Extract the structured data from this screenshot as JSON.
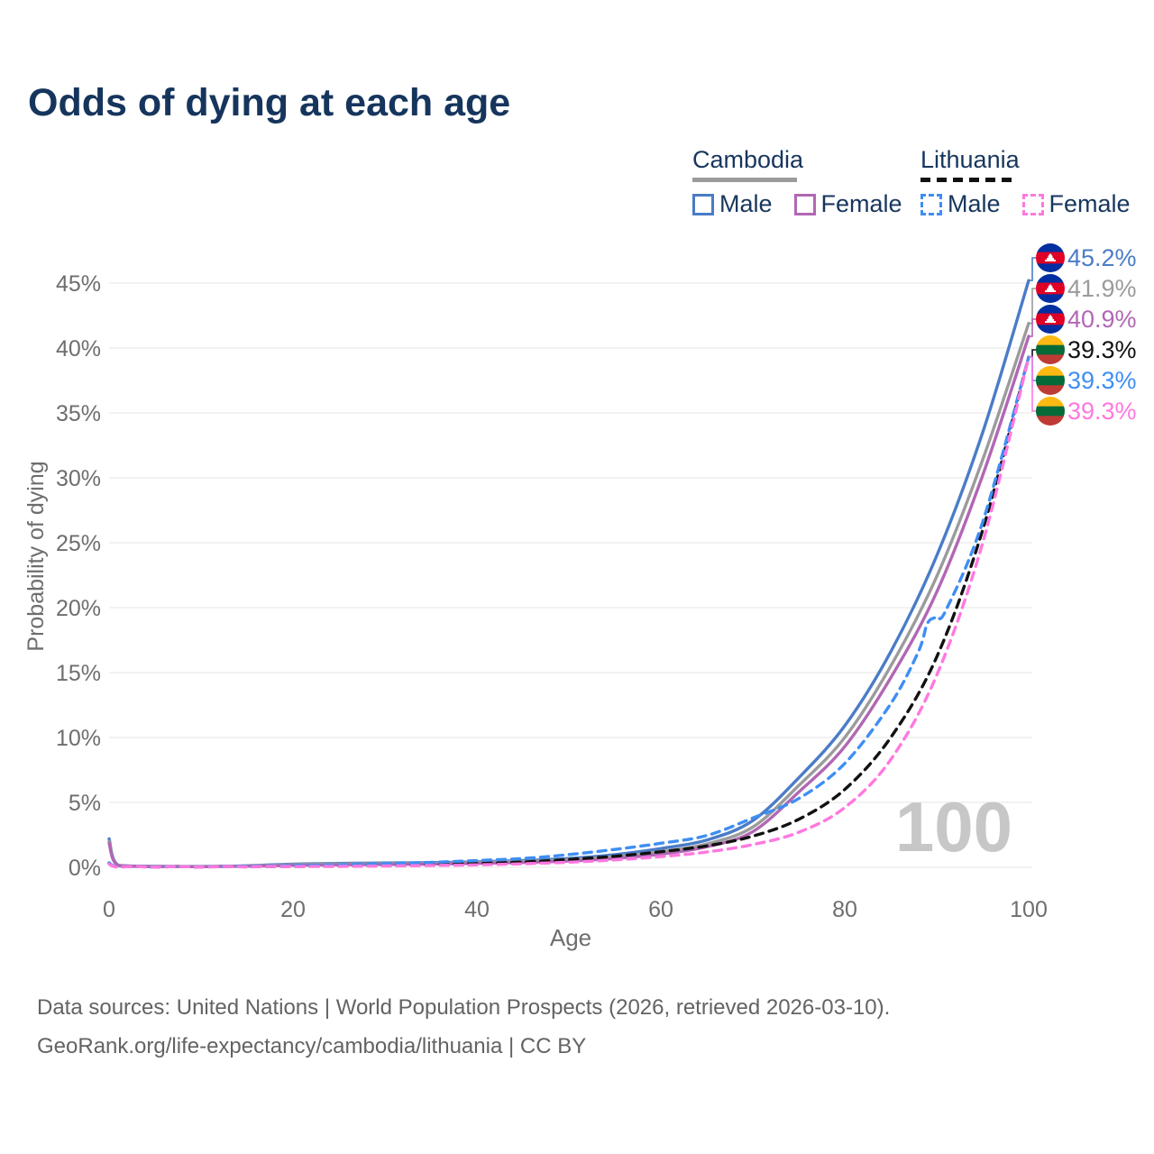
{
  "title": "Odds of dying at each age",
  "legend": {
    "groups": [
      {
        "label": "Cambodia",
        "line_style": "solid",
        "line_color": "#9b9b9b",
        "items": [
          {
            "label": "Male",
            "swatch_color": "#4a7cc7",
            "swatch_style": "solid"
          },
          {
            "label": "Female",
            "swatch_color": "#b167b4",
            "swatch_style": "solid"
          }
        ]
      },
      {
        "label": "Lithuania",
        "line_style": "dashed",
        "line_color": "#111111",
        "items": [
          {
            "label": "Male",
            "swatch_color": "#3f8ef3",
            "swatch_style": "dashed"
          },
          {
            "label": "Female",
            "swatch_color": "#ff78e0",
            "swatch_style": "dashed"
          }
        ]
      }
    ]
  },
  "watermark": "100",
  "footer": {
    "line1": "Data sources: United Nations | World Population Prospects (2026, retrieved 2026-03-10).",
    "line2": "GeoRank.org/life-expectancy/cambodia/lithuania | CC BY"
  },
  "flags": {
    "cambodia": {
      "bands": [
        "#032ea1",
        "#e00025",
        "#032ea1"
      ],
      "band_heights": [
        0.3,
        0.4,
        0.3
      ],
      "emblem_color": "#ffffff"
    },
    "lithuania": {
      "bands": [
        "#fdb913",
        "#046a38",
        "#be3a34"
      ],
      "band_heights": [
        0.334,
        0.333,
        0.333
      ]
    }
  },
  "chart_data": {
    "type": "line",
    "title": "Odds of dying at each age",
    "xlabel": "Age",
    "ylabel": "Probability of dying",
    "xlim": [
      0,
      100
    ],
    "ylim_pct": [
      0,
      45
    ],
    "x_ticks": [
      0,
      20,
      40,
      60,
      80,
      100
    ],
    "y_ticks_pct": [
      0,
      5,
      10,
      15,
      20,
      25,
      30,
      35,
      40,
      45
    ],
    "grid": "horizontal",
    "axis_text_color": "#6e6e6e",
    "grid_color": "#ebebeb",
    "watermark_color": "#c7c7c7",
    "series": [
      {
        "id": "cambodia-male",
        "country": "cambodia",
        "sex": "male",
        "name": "Cambodia Male",
        "color": "#4a7cc7",
        "dash": false,
        "flag": "cambodia",
        "end_label": "45.2%",
        "end_value_pct": 45.2,
        "points_pct": [
          [
            0,
            2.2
          ],
          [
            1,
            0.16
          ],
          [
            5,
            0.07
          ],
          [
            10,
            0.06
          ],
          [
            15,
            0.12
          ],
          [
            20,
            0.25
          ],
          [
            25,
            0.3
          ],
          [
            30,
            0.33
          ],
          [
            35,
            0.36
          ],
          [
            40,
            0.42
          ],
          [
            45,
            0.52
          ],
          [
            50,
            0.68
          ],
          [
            55,
            0.98
          ],
          [
            60,
            1.45
          ],
          [
            65,
            2.1
          ],
          [
            70,
            3.6
          ],
          [
            75,
            6.9
          ],
          [
            80,
            10.9
          ],
          [
            85,
            16.6
          ],
          [
            90,
            24.0
          ],
          [
            95,
            33.5
          ],
          [
            100,
            45.2
          ]
        ]
      },
      {
        "id": "cambodia-all",
        "country": "cambodia",
        "sex": "both",
        "name": "Cambodia Both sexes",
        "color": "#9b9b9b",
        "dash": false,
        "flag": "cambodia",
        "end_label": "41.9%",
        "end_value_pct": 41.9,
        "points_pct": [
          [
            0,
            2.0
          ],
          [
            1,
            0.14
          ],
          [
            5,
            0.06
          ],
          [
            10,
            0.05
          ],
          [
            15,
            0.1
          ],
          [
            20,
            0.2
          ],
          [
            25,
            0.25
          ],
          [
            30,
            0.28
          ],
          [
            35,
            0.31
          ],
          [
            40,
            0.36
          ],
          [
            45,
            0.44
          ],
          [
            50,
            0.58
          ],
          [
            55,
            0.82
          ],
          [
            60,
            1.2
          ],
          [
            65,
            1.8
          ],
          [
            70,
            3.1
          ],
          [
            75,
            6.3
          ],
          [
            80,
            10.0
          ],
          [
            85,
            15.5
          ],
          [
            90,
            22.4
          ],
          [
            95,
            31.4
          ],
          [
            100,
            41.9
          ]
        ]
      },
      {
        "id": "cambodia-female",
        "country": "cambodia",
        "sex": "female",
        "name": "Cambodia Female",
        "color": "#b167b4",
        "dash": false,
        "flag": "cambodia",
        "end_label": "40.9%",
        "end_value_pct": 40.9,
        "points_pct": [
          [
            0,
            1.85
          ],
          [
            1,
            0.13
          ],
          [
            5,
            0.05
          ],
          [
            10,
            0.04
          ],
          [
            15,
            0.08
          ],
          [
            20,
            0.15
          ],
          [
            25,
            0.19
          ],
          [
            30,
            0.22
          ],
          [
            35,
            0.25
          ],
          [
            40,
            0.3
          ],
          [
            45,
            0.37
          ],
          [
            50,
            0.48
          ],
          [
            55,
            0.68
          ],
          [
            60,
            1.02
          ],
          [
            65,
            1.58
          ],
          [
            70,
            2.75
          ],
          [
            75,
            5.8
          ],
          [
            80,
            9.3
          ],
          [
            85,
            14.6
          ],
          [
            90,
            21.2
          ],
          [
            95,
            30.2
          ],
          [
            100,
            40.9
          ]
        ]
      },
      {
        "id": "lithuania-all",
        "country": "lithuania",
        "sex": "both",
        "name": "Lithuania Both sexes",
        "color": "#111111",
        "dash": true,
        "flag": "lithuania",
        "end_label": "39.3%",
        "end_value_pct": 39.3,
        "points_pct": [
          [
            0,
            0.3
          ],
          [
            1,
            0.02
          ],
          [
            5,
            0.01
          ],
          [
            10,
            0.01
          ],
          [
            15,
            0.04
          ],
          [
            20,
            0.07
          ],
          [
            25,
            0.1
          ],
          [
            30,
            0.15
          ],
          [
            35,
            0.21
          ],
          [
            40,
            0.29
          ],
          [
            45,
            0.41
          ],
          [
            50,
            0.6
          ],
          [
            55,
            0.85
          ],
          [
            60,
            1.2
          ],
          [
            65,
            1.65
          ],
          [
            70,
            2.4
          ],
          [
            75,
            3.7
          ],
          [
            80,
            6.0
          ],
          [
            85,
            10.0
          ],
          [
            90,
            16.2
          ],
          [
            95,
            26.0
          ],
          [
            100,
            39.3
          ]
        ]
      },
      {
        "id": "lithuania-male",
        "country": "lithuania",
        "sex": "male",
        "name": "Lithuania Male",
        "color": "#3f8ef3",
        "dash": true,
        "flag": "lithuania",
        "end_label": "39.3%",
        "end_value_pct": 39.3,
        "points_pct": [
          [
            0,
            0.35
          ],
          [
            1,
            0.03
          ],
          [
            5,
            0.02
          ],
          [
            10,
            0.02
          ],
          [
            15,
            0.07
          ],
          [
            20,
            0.13
          ],
          [
            25,
            0.19
          ],
          [
            30,
            0.27
          ],
          [
            35,
            0.38
          ],
          [
            40,
            0.52
          ],
          [
            45,
            0.68
          ],
          [
            50,
            0.98
          ],
          [
            55,
            1.38
          ],
          [
            60,
            1.85
          ],
          [
            65,
            2.45
          ],
          [
            70,
            3.8
          ],
          [
            75,
            5.3
          ],
          [
            80,
            8.0
          ],
          [
            85,
            12.6
          ],
          [
            88,
            16.6
          ],
          [
            89,
            18.8
          ],
          [
            90,
            19.3
          ],
          [
            91,
            19.8
          ],
          [
            95,
            26.6
          ],
          [
            100,
            39.3
          ]
        ]
      },
      {
        "id": "lithuania-female",
        "country": "lithuania",
        "sex": "female",
        "name": "Lithuania Female",
        "color": "#ff78e0",
        "dash": true,
        "flag": "lithuania",
        "end_label": "39.3%",
        "end_value_pct": 39.3,
        "points_pct": [
          [
            0,
            0.25
          ],
          [
            1,
            0.02
          ],
          [
            5,
            0.01
          ],
          [
            10,
            0.01
          ],
          [
            15,
            0.03
          ],
          [
            20,
            0.05
          ],
          [
            25,
            0.07
          ],
          [
            30,
            0.1
          ],
          [
            35,
            0.14
          ],
          [
            40,
            0.19
          ],
          [
            45,
            0.27
          ],
          [
            50,
            0.39
          ],
          [
            55,
            0.57
          ],
          [
            60,
            0.82
          ],
          [
            65,
            1.18
          ],
          [
            70,
            1.75
          ],
          [
            75,
            2.7
          ],
          [
            80,
            4.6
          ],
          [
            85,
            8.3
          ],
          [
            90,
            14.8
          ],
          [
            95,
            25.0
          ],
          [
            100,
            39.3
          ]
        ]
      }
    ]
  }
}
